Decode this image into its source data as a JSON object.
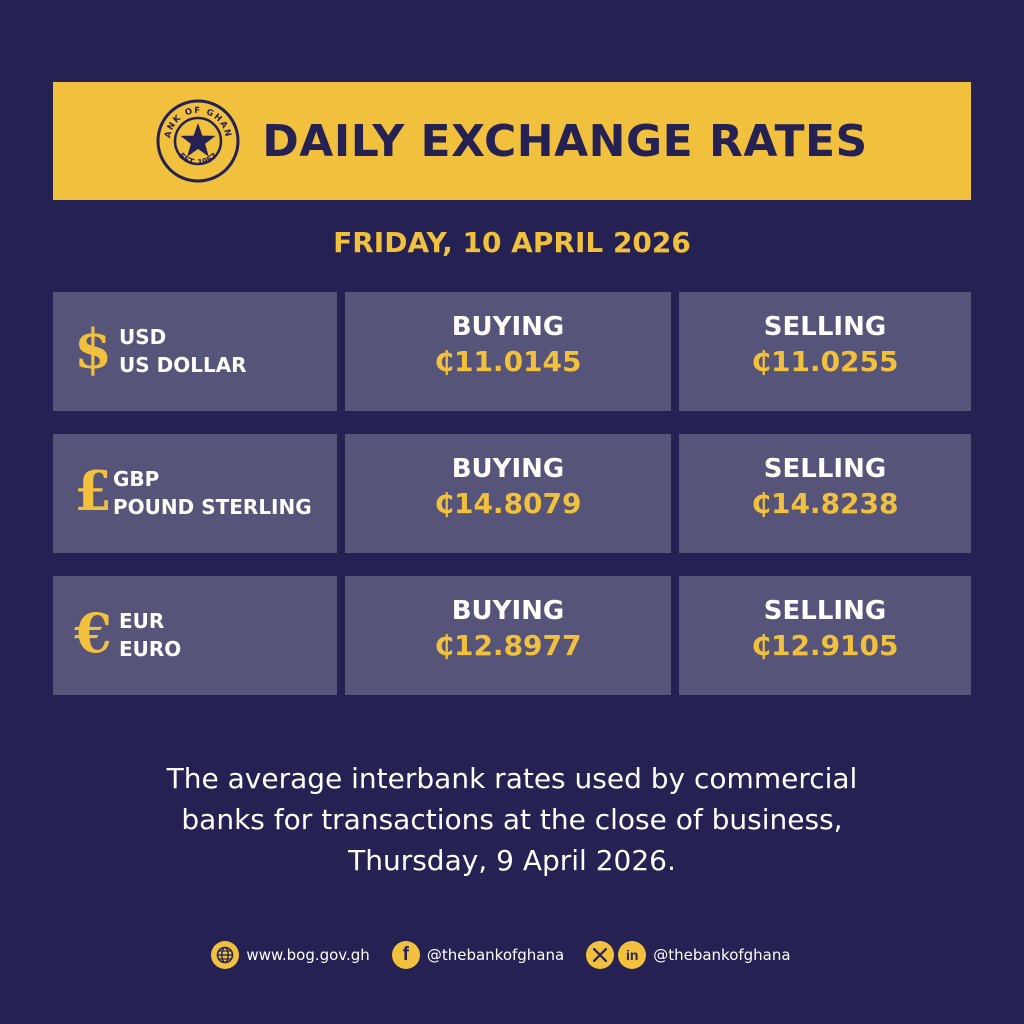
{
  "header": {
    "title": "DAILY EXCHANGE RATES",
    "seal_text": "BANK OF GHANA · EST. 1957",
    "date": "FRIDAY, 10 APRIL 2026"
  },
  "rates": [
    {
      "symbol": "$",
      "code": "USD",
      "name": "US DOLLAR",
      "buying_label": "BUYING",
      "buying": "₵11.0145",
      "selling_label": "SELLING",
      "selling": "₵11.0255"
    },
    {
      "symbol": "£",
      "code": "GBP",
      "name": "POUND STERLING",
      "buying_label": "BUYING",
      "buying": "₵14.8079",
      "selling_label": "SELLING",
      "selling": "₵14.8238"
    },
    {
      "symbol": "€",
      "code": "EUR",
      "name": "EURO",
      "buying_label": "BUYING",
      "buying": "₵12.8977",
      "selling_label": "SELLING",
      "selling": "₵12.9105"
    }
  ],
  "note": {
    "line1": "The average interbank rates used by commercial",
    "line2": "banks for transactions at the close of business,",
    "line3": "Thursday, 9 April 2026."
  },
  "footer": {
    "website": "www.bog.gov.gh",
    "facebook": "@thebankofghana",
    "x_linkedin": "@thebankofghana"
  },
  "colors": {
    "background": "#252153",
    "accent": "#f1c13e",
    "card": "#575479",
    "text": "#ffffff"
  },
  "icons": [
    "bank-seal-icon",
    "globe-icon",
    "facebook-icon",
    "x-icon",
    "linkedin-icon"
  ]
}
